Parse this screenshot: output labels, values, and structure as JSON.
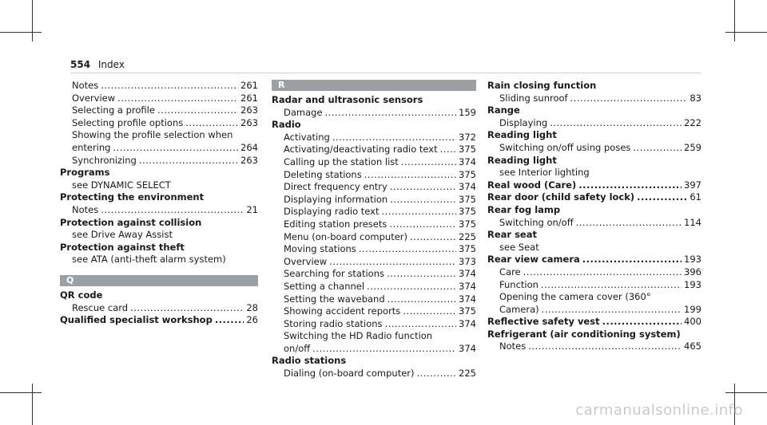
{
  "page": {
    "number": "554",
    "section": "Index"
  },
  "watermark": "carmanualsonline.info",
  "col1": {
    "entries": [
      {
        "type": "sub",
        "label": "Notes",
        "num": "261"
      },
      {
        "type": "sub",
        "label": "Overview",
        "num": "261"
      },
      {
        "type": "sub",
        "label": "Selecting a profile",
        "num": "263"
      },
      {
        "type": "sub",
        "label": "Selecting profile options",
        "num": "263"
      },
      {
        "type": "plain",
        "label": "Showing the profile selection when"
      },
      {
        "type": "sub",
        "label": "entering",
        "num": "264"
      },
      {
        "type": "sub",
        "label": "Synchronizing",
        "num": "263"
      },
      {
        "type": "term",
        "label": "Programs"
      },
      {
        "type": "plain",
        "label": "see DYNAMIC SELECT"
      },
      {
        "type": "term",
        "label": "Protecting the environment"
      },
      {
        "type": "sub",
        "label": "Notes",
        "num": "21"
      },
      {
        "type": "term",
        "label": "Protection against collision"
      },
      {
        "type": "plain",
        "label": "see Drive Away Assist"
      },
      {
        "type": "term",
        "label": "Protection against theft"
      },
      {
        "type": "plain",
        "label": "see ATA (anti-theft alarm system)"
      }
    ],
    "letter": "Q",
    "entries_after": [
      {
        "type": "term",
        "label": "QR code"
      },
      {
        "type": "sub",
        "label": "Rescue card",
        "num": "28"
      },
      {
        "type": "termrow",
        "label": "Qualified specialist workshop",
        "num": "26"
      }
    ]
  },
  "col2": {
    "letter": "R",
    "entries": [
      {
        "type": "term",
        "label": "Radar and ultrasonic sensors"
      },
      {
        "type": "sub",
        "label": "Damage",
        "num": "159"
      },
      {
        "type": "term",
        "label": "Radio"
      },
      {
        "type": "sub",
        "label": "Activating",
        "num": "372"
      },
      {
        "type": "sub",
        "label": "Activating/deactivating radio text",
        "num": "375"
      },
      {
        "type": "sub",
        "label": "Calling up the station list",
        "num": "374"
      },
      {
        "type": "sub",
        "label": "Deleting stations",
        "num": "375"
      },
      {
        "type": "sub",
        "label": "Direct frequency entry",
        "num": "374"
      },
      {
        "type": "sub",
        "label": "Displaying information",
        "num": "375"
      },
      {
        "type": "sub",
        "label": "Displaying radio text",
        "num": "375"
      },
      {
        "type": "sub",
        "label": "Editing station presets",
        "num": "375"
      },
      {
        "type": "sub",
        "label": "Menu (on-board computer)",
        "num": "225"
      },
      {
        "type": "sub",
        "label": "Moving stations",
        "num": "375"
      },
      {
        "type": "sub",
        "label": "Overview",
        "num": "373"
      },
      {
        "type": "sub",
        "label": "Searching for stations",
        "num": "374"
      },
      {
        "type": "sub",
        "label": "Setting a channel",
        "num": "374"
      },
      {
        "type": "sub",
        "label": "Setting the waveband",
        "num": "374"
      },
      {
        "type": "sub",
        "label": "Showing accident reports",
        "num": "375"
      },
      {
        "type": "sub",
        "label": "Storing radio stations",
        "num": "374"
      },
      {
        "type": "plain",
        "label": "Switching the HD Radio function"
      },
      {
        "type": "sub",
        "label": "on/off",
        "num": "374"
      },
      {
        "type": "term",
        "label": "Radio stations"
      },
      {
        "type": "sub",
        "label": "Dialing (on-board computer)",
        "num": "225"
      }
    ]
  },
  "col3": {
    "entries": [
      {
        "type": "term",
        "label": "Rain closing function"
      },
      {
        "type": "sub",
        "label": "Sliding sunroof",
        "num": "83"
      },
      {
        "type": "term",
        "label": "Range"
      },
      {
        "type": "sub",
        "label": "Displaying",
        "num": "222"
      },
      {
        "type": "term",
        "label": "Reading light"
      },
      {
        "type": "sub",
        "label": "Switching on/off using poses",
        "num": "259"
      },
      {
        "type": "term",
        "label": "Reading light"
      },
      {
        "type": "plain",
        "label": "see Interior lighting"
      },
      {
        "type": "termrow",
        "label": "Real wood (Care)",
        "num": "397"
      },
      {
        "type": "termrow",
        "label": "Rear door (child safety lock)",
        "num": "61"
      },
      {
        "type": "term",
        "label": "Rear fog lamp"
      },
      {
        "type": "sub",
        "label": "Switching on/off",
        "num": "114"
      },
      {
        "type": "term",
        "label": "Rear seat"
      },
      {
        "type": "plain",
        "label": "see Seat"
      },
      {
        "type": "termrow",
        "label": "Rear view camera",
        "num": "193"
      },
      {
        "type": "sub",
        "label": "Care",
        "num": "396"
      },
      {
        "type": "sub",
        "label": "Function",
        "num": "193"
      },
      {
        "type": "plain",
        "label": "Opening the camera cover (360°"
      },
      {
        "type": "sub",
        "label": "Camera)",
        "num": "199"
      },
      {
        "type": "termrow",
        "label": "Reflective safety vest",
        "num": "400"
      },
      {
        "type": "term",
        "label": "Refrigerant (air conditioning system)"
      },
      {
        "type": "sub",
        "label": "Notes",
        "num": "465"
      }
    ]
  }
}
